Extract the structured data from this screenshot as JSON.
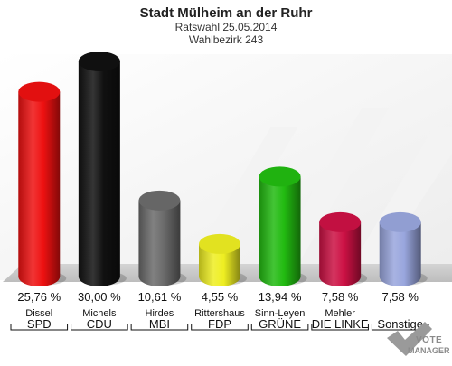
{
  "chart_data": {
    "type": "bar",
    "title": "Stadt Mülheim an der Ruhr",
    "subtitle_lines": [
      "Ratswahl 25.05.2014",
      "Wahlbezirk 243"
    ],
    "ylim": [
      0,
      30
    ],
    "categories": [
      {
        "candidate": "Dissel",
        "party": "SPD",
        "value": 25.76,
        "label": "25,76 %",
        "color": "#ee1111"
      },
      {
        "candidate": "Michels",
        "party": "CDU",
        "value": 30.0,
        "label": "30,00 %",
        "color": "#111111"
      },
      {
        "candidate": "Hirdes",
        "party": "MBI",
        "value": 10.61,
        "label": "10,61 %",
        "color": "#6b6b6b"
      },
      {
        "candidate": "Rittershaus",
        "party": "FDP",
        "value": 4.55,
        "label": "4,55 %",
        "color": "#eeee22"
      },
      {
        "candidate": "Sinn-Leyen",
        "party": "GRÜNE",
        "value": 13.94,
        "label": "13,94 %",
        "color": "#22bb11"
      },
      {
        "candidate": "Mehler",
        "party": "DIE LINKE",
        "value": 7.58,
        "label": "7,58 %",
        "color": "#cc1144"
      },
      {
        "candidate": "",
        "party": "Sonstige",
        "value": 7.58,
        "label": "7,58 %",
        "color": "#99a6dd"
      }
    ]
  },
  "logo": {
    "line1": "VOTE",
    "line2": "MANAGER"
  }
}
